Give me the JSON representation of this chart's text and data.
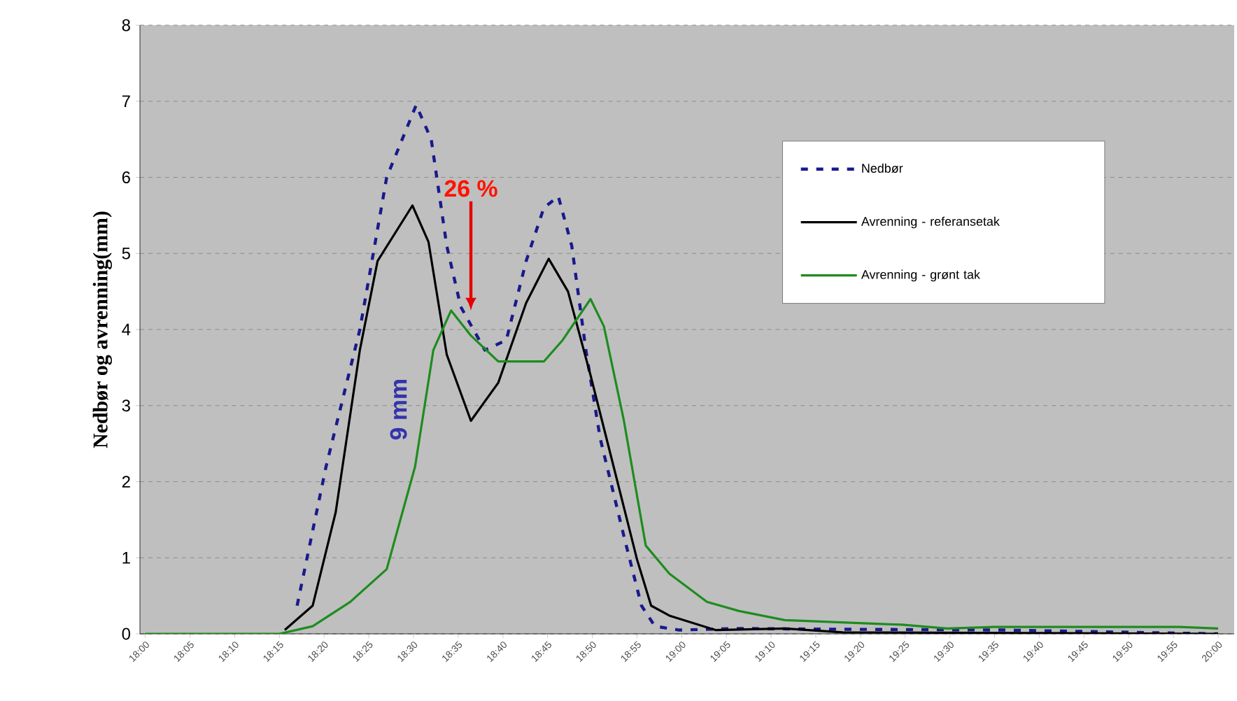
{
  "chart_data": {
    "type": "line",
    "ylabel": "Nedbør og avrenning(mm)",
    "xlim": [
      17.99,
      20.03
    ],
    "ylim": [
      0,
      8
    ],
    "yticks": [
      0,
      1,
      2,
      3,
      4,
      5,
      6,
      7,
      8
    ],
    "xticks": [
      {
        "value": 18,
        "label": "18:00"
      },
      {
        "value": 18.0833,
        "label": "18:05"
      },
      {
        "value": 18.1667,
        "label": "18:10"
      },
      {
        "value": 18.25,
        "label": "18:15"
      },
      {
        "value": 18.3333,
        "label": "18:20"
      },
      {
        "value": 18.4167,
        "label": "18:25"
      },
      {
        "value": 18.5,
        "label": "18:30"
      },
      {
        "value": 18.5833,
        "label": "18:35"
      },
      {
        "value": 18.6667,
        "label": "18:40"
      },
      {
        "value": 18.75,
        "label": "18:45"
      },
      {
        "value": 18.8333,
        "label": "18:50"
      },
      {
        "value": 18.9167,
        "label": "18:55"
      },
      {
        "value": 19,
        "label": "19:00"
      },
      {
        "value": 19.0833,
        "label": "19:05"
      },
      {
        "value": 19.1667,
        "label": "19:10"
      },
      {
        "value": 19.25,
        "label": "19:15"
      },
      {
        "value": 19.3333,
        "label": "19:20"
      },
      {
        "value": 19.4167,
        "label": "19:25"
      },
      {
        "value": 19.5,
        "label": "19:30"
      },
      {
        "value": 19.5833,
        "label": "19:35"
      },
      {
        "value": 19.6667,
        "label": "19:40"
      },
      {
        "value": 19.75,
        "label": "19:45"
      },
      {
        "value": 19.8333,
        "label": "19:50"
      },
      {
        "value": 19.9167,
        "label": "19:55"
      },
      {
        "value": 20,
        "label": "20:00"
      }
    ],
    "grid": "y",
    "legend": "top right",
    "series": [
      {
        "name": "Nedbør",
        "color": "#1a1a8c",
        "line_style": "dashed",
        "x": [
          18.283,
          18.337,
          18.4,
          18.45,
          18.505,
          18.533,
          18.562,
          18.588,
          18.633,
          18.673,
          18.71,
          18.743,
          18.77,
          18.795,
          18.822,
          18.848,
          18.892,
          18.925,
          18.95,
          18.995,
          19.1,
          19.3,
          19.6,
          20.0
        ],
        "values": [
          0.37,
          2.2,
          4.0,
          6.0,
          6.95,
          6.5,
          5.1,
          4.3,
          3.73,
          3.86,
          4.9,
          5.6,
          5.75,
          5.1,
          3.7,
          2.57,
          1.29,
          0.37,
          0.1,
          0.05,
          0.07,
          0.06,
          0.05,
          0
        ]
      },
      {
        "name": "Avrenning - referansetak",
        "color": "#000000",
        "line_style": "solid",
        "x": [
          18.26,
          18.312,
          18.355,
          18.4,
          18.433,
          18.498,
          18.528,
          18.562,
          18.607,
          18.658,
          18.71,
          18.752,
          18.788,
          18.83,
          18.873,
          18.917,
          18.943,
          18.977,
          19.063,
          19.192,
          19.3,
          20.0
        ],
        "values": [
          0.05,
          0.37,
          1.6,
          3.73,
          4.9,
          5.63,
          5.15,
          3.67,
          2.8,
          3.3,
          4.35,
          4.93,
          4.5,
          3.4,
          2.2,
          0.97,
          0.37,
          0.24,
          0.05,
          0.07,
          0.02,
          0
        ]
      },
      {
        "name": "Avrenning - grønt tak",
        "color": "#1e8c1e",
        "line_style": "solid",
        "x": [
          18.0,
          18.25,
          18.312,
          18.382,
          18.45,
          18.503,
          18.537,
          18.57,
          18.607,
          18.658,
          18.743,
          18.778,
          18.83,
          18.855,
          18.892,
          18.933,
          18.977,
          19.047,
          19.107,
          19.192,
          19.41,
          19.495,
          19.582,
          19.928,
          20.0
        ],
        "values": [
          0,
          0,
          0.1,
          0.42,
          0.85,
          2.2,
          3.73,
          4.25,
          3.92,
          3.58,
          3.58,
          3.86,
          4.4,
          4.04,
          2.81,
          1.16,
          0.79,
          0.42,
          0.3,
          0.18,
          0.12,
          0.07,
          0.09,
          0.09,
          0.07
        ]
      }
    ],
    "annotations": [
      {
        "text": "26 %",
        "x": 18.607,
        "y": 4.25
      },
      "9 mm"
    ]
  }
}
